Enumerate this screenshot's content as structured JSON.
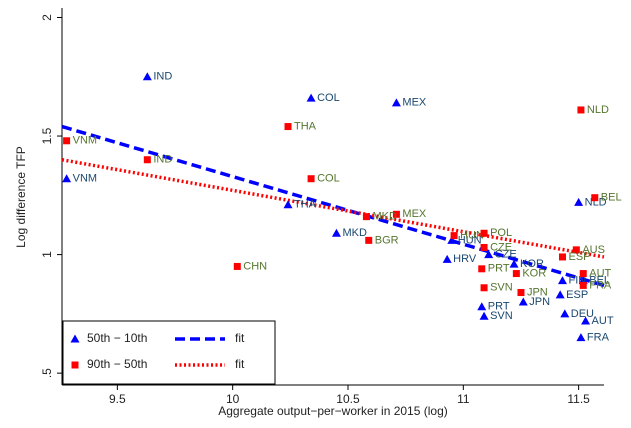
{
  "chart_data": {
    "type": "scatter",
    "x_label": "Aggregate output−per−worker in 2015 (log)",
    "y_label": "Log difference TFP",
    "xlim": [
      9.26,
      11.61
    ],
    "ylim": [
      0.45,
      2.04
    ],
    "xticks": [
      9.5,
      10,
      10.5,
      11,
      11.5
    ],
    "yticks": [
      {
        "value": 0.5,
        "label": ".5"
      },
      1,
      1.5,
      2
    ],
    "legend": "bottom-left",
    "series": [
      {
        "name": "50th − 10th",
        "marker": "triangle",
        "color": "#0000ff",
        "label_color": "#1a476f",
        "labels": [
          "IND",
          "COL",
          "MEX",
          "VNM",
          "THA",
          "MKD",
          "HRV",
          "HUN",
          "CZE",
          "KOR",
          "JPN",
          "PRT",
          "SVN",
          "ESP",
          "DEU",
          "AUT",
          "FRA",
          "NLD",
          "BEL",
          "FIN"
        ],
        "x": [
          9.63,
          10.34,
          10.71,
          9.28,
          10.24,
          10.45,
          10.93,
          10.95,
          11.11,
          11.22,
          11.26,
          11.08,
          11.09,
          11.42,
          11.44,
          11.53,
          11.51,
          11.5,
          11.52,
          11.43
        ],
        "values": [
          1.75,
          1.66,
          1.64,
          1.32,
          1.21,
          1.09,
          0.98,
          1.06,
          1.0,
          0.96,
          0.8,
          0.78,
          0.74,
          0.83,
          0.75,
          0.72,
          0.65,
          1.22,
          0.89,
          0.89
        ]
      },
      {
        "name": "90th − 50th",
        "marker": "square",
        "color": "#ff0000",
        "label_color": "#55752f",
        "labels": [
          "NLD",
          "THA",
          "VNM",
          "IND",
          "COL",
          "BEL",
          "MEX",
          "MKD",
          "HUN",
          "POL",
          "CZE",
          "AUS",
          "ESP",
          "AUT",
          "FRA",
          "PRT",
          "KOR",
          "SVN",
          "JPN",
          "CHN",
          "BGR"
        ],
        "x": [
          11.51,
          10.24,
          9.28,
          9.63,
          10.34,
          11.57,
          10.71,
          10.58,
          10.96,
          11.09,
          11.09,
          11.49,
          11.43,
          11.52,
          11.52,
          11.08,
          11.23,
          11.09,
          11.25,
          10.02,
          10.59
        ],
        "values": [
          1.61,
          1.54,
          1.48,
          1.4,
          1.32,
          1.24,
          1.17,
          1.16,
          1.08,
          1.09,
          1.03,
          1.02,
          0.99,
          0.92,
          0.87,
          0.94,
          0.92,
          0.86,
          0.84,
          0.95,
          1.06
        ]
      }
    ],
    "fits": [
      {
        "name": "fit",
        "style": "dashed",
        "color": "#0000ff",
        "x": [
          9.26,
          11.61
        ],
        "values": [
          1.54,
          0.87
        ]
      },
      {
        "name": "fit",
        "style": "dotted",
        "color": "#ff0000",
        "x": [
          9.26,
          11.61
        ],
        "values": [
          1.4,
          0.99
        ]
      }
    ]
  }
}
